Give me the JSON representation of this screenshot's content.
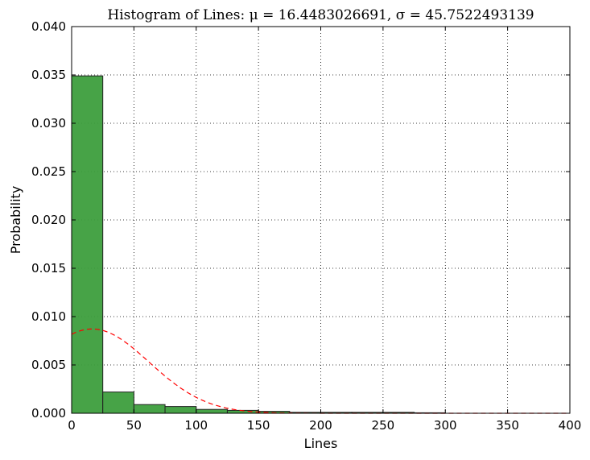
{
  "chart_data": {
    "type": "bar",
    "title": "Histogram of Lines: μ = 16.4483026691, σ = 45.7522493139",
    "xlabel": "Lines",
    "ylabel": "Probability",
    "xlim": [
      0,
      400
    ],
    "ylim": [
      0,
      0.04
    ],
    "x_ticks": [
      "0",
      "50",
      "100",
      "150",
      "200",
      "250",
      "300",
      "350",
      "400"
    ],
    "y_ticks": [
      "0.000",
      "0.005",
      "0.010",
      "0.015",
      "0.020",
      "0.025",
      "0.030",
      "0.035",
      "0.040"
    ],
    "grid": true,
    "bar_color": "#3d9e3d",
    "curve_color": "#ff0000",
    "bins": [
      {
        "start": 0,
        "end": 25,
        "value": 0.0349
      },
      {
        "start": 25,
        "end": 50,
        "value": 0.0022
      },
      {
        "start": 50,
        "end": 75,
        "value": 0.0009
      },
      {
        "start": 75,
        "end": 100,
        "value": 0.0007
      },
      {
        "start": 100,
        "end": 125,
        "value": 0.0004
      },
      {
        "start": 125,
        "end": 150,
        "value": 0.0003
      },
      {
        "start": 150,
        "end": 175,
        "value": 0.0002
      },
      {
        "start": 175,
        "end": 200,
        "value": 0.0001
      },
      {
        "start": 200,
        "end": 225,
        "value": 0.0001
      },
      {
        "start": 225,
        "end": 250,
        "value": 0.0001
      },
      {
        "start": 250,
        "end": 275,
        "value": 0.0001
      },
      {
        "start": 275,
        "end": 300,
        "value": 5e-05
      }
    ],
    "fit_curve": {
      "style": "dashed",
      "mu": 16.4483026691,
      "sigma": 45.7522493139,
      "x_range": [
        0,
        400
      ]
    }
  }
}
